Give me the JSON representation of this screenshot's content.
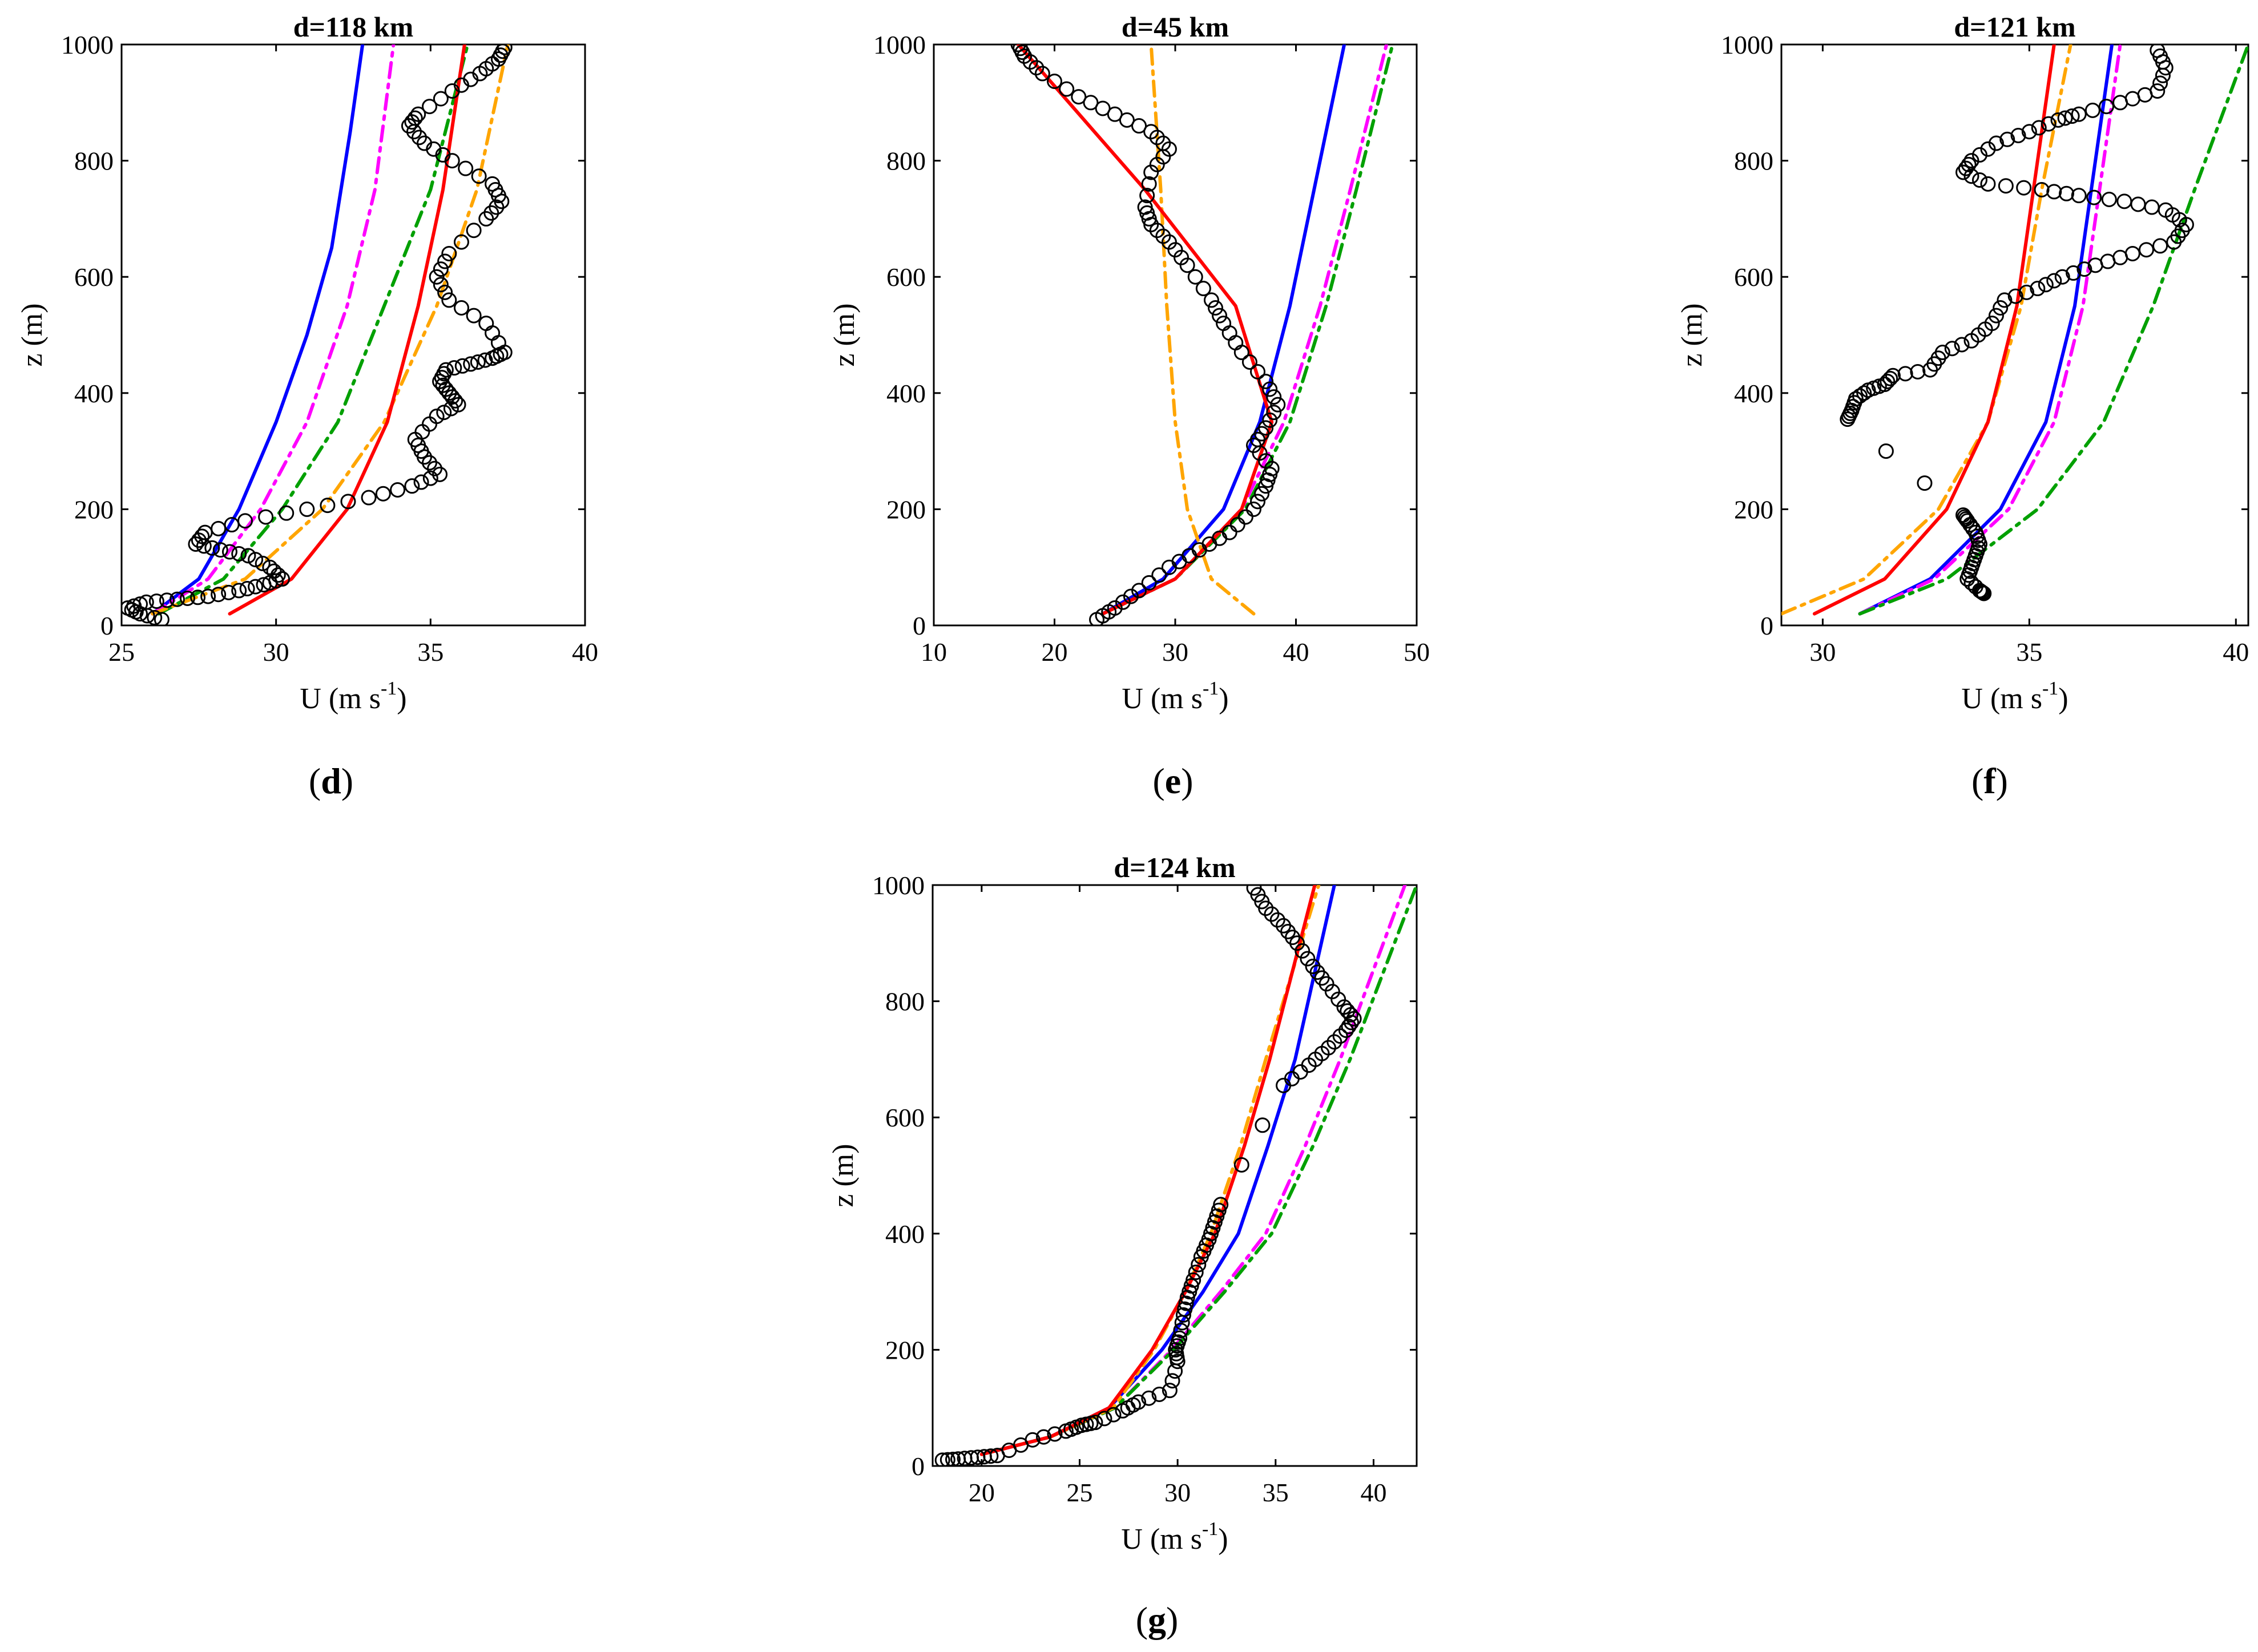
{
  "figure": {
    "colors": {
      "obs": "#000000",
      "blue": "#0000ff",
      "magenta": "#ff00ff",
      "green": "#00a000",
      "orange": "#ffa500",
      "red": "#ff0000"
    }
  },
  "chart_data": [
    {
      "type": "line",
      "title": "d=118 km",
      "caption": {
        "open": "(",
        "letter": "d",
        "close": ")"
      },
      "xlabel": {
        "main": "U (m s",
        "sup": "-1",
        "close": ")"
      },
      "ylabel": "z (m)",
      "xlim": [
        25,
        40
      ],
      "ylim": [
        0,
        1000
      ],
      "xticks": [
        25,
        30,
        35,
        40
      ],
      "yticks": [
        0,
        200,
        400,
        600,
        800,
        1000
      ],
      "series": [
        {
          "name": "blue",
          "style": "solid",
          "x": [
            26.0,
            27.5,
            28.8,
            30.0,
            31.0,
            31.8,
            32.4,
            32.8
          ],
          "y": [
            20,
            80,
            200,
            350,
            500,
            650,
            850,
            1000
          ]
        },
        {
          "name": "magenta",
          "style": "dashdot",
          "x": [
            26.0,
            27.8,
            29.5,
            31.0,
            32.3,
            33.2,
            33.8
          ],
          "y": [
            20,
            80,
            200,
            350,
            550,
            750,
            1000
          ]
        },
        {
          "name": "green",
          "style": "dashdot",
          "x": [
            26.2,
            28.3,
            30.2,
            32.0,
            33.5,
            35.0,
            36.2
          ],
          "y": [
            20,
            80,
            200,
            350,
            550,
            750,
            1000
          ]
        },
        {
          "name": "orange",
          "style": "dashdot",
          "x": [
            26.0,
            29.0,
            31.5,
            33.5,
            35.2,
            36.5,
            37.5
          ],
          "y": [
            20,
            80,
            200,
            350,
            550,
            750,
            1000
          ]
        },
        {
          "name": "red",
          "style": "solid",
          "x": [
            28.5,
            30.5,
            32.3,
            33.6,
            34.6,
            35.4,
            36.1
          ],
          "y": [
            20,
            80,
            200,
            350,
            550,
            750,
            1000
          ]
        },
        {
          "name": "observations",
          "style": "markers",
          "x": [
            26.3,
            25.6,
            25.2,
            25.8,
            26.8,
            27.8,
            28.8,
            29.6,
            30.2,
            29.8,
            29.1,
            28.2,
            27.4,
            27.7,
            29.0,
            31.0,
            33.0,
            34.4,
            35.3,
            34.8,
            34.5,
            35.2,
            35.9,
            35.6,
            35.3,
            35.5,
            36.3,
            37.0,
            37.4,
            36.8,
            35.6,
            35.2,
            35.6,
            36.8,
            37.3,
            37.0,
            35.7,
            34.8,
            34.3,
            34.6,
            35.7,
            36.6,
            37.2,
            37.4
          ],
          "y": [
            10,
            20,
            30,
            40,
            45,
            50,
            60,
            70,
            80,
            100,
            120,
            130,
            140,
            160,
            180,
            200,
            220,
            240,
            260,
            290,
            320,
            360,
            380,
            400,
            420,
            440,
            450,
            460,
            470,
            520,
            560,
            600,
            640,
            700,
            730,
            760,
            800,
            830,
            860,
            880,
            920,
            950,
            975,
            995
          ]
        }
      ]
    },
    {
      "type": "line",
      "title": "d=45 km",
      "caption": {
        "open": "(",
        "letter": "e",
        "close": ")"
      },
      "xlabel": {
        "main": "U (m s",
        "sup": "-1",
        "close": ")"
      },
      "ylabel": "z (m)",
      "xlim": [
        10,
        50
      ],
      "ylim": [
        0,
        1000
      ],
      "xticks": [
        10,
        20,
        30,
        40,
        50
      ],
      "yticks": [
        0,
        200,
        400,
        600,
        800,
        1000
      ],
      "series": [
        {
          "name": "blue",
          "style": "solid",
          "x": [
            24.0,
            29.0,
            34.0,
            37.0,
            39.5,
            41.5,
            44.0
          ],
          "y": [
            20,
            80,
            200,
            350,
            550,
            750,
            1000
          ]
        },
        {
          "name": "magenta",
          "style": "dashdot",
          "x": [
            24.0,
            30.0,
            35.5,
            39.0,
            42.0,
            44.5,
            47.5
          ],
          "y": [
            20,
            80,
            200,
            350,
            550,
            750,
            1000
          ]
        },
        {
          "name": "green",
          "style": "dashdot",
          "x": [
            24.0,
            30.0,
            35.8,
            39.5,
            42.5,
            45.0,
            48.0
          ],
          "y": [
            20,
            80,
            200,
            350,
            550,
            750,
            1000
          ]
        },
        {
          "name": "orange",
          "style": "dashdot",
          "x": [
            36.5,
            33.0,
            31.0,
            30.0,
            29.3,
            28.8,
            28.0
          ],
          "y": [
            20,
            80,
            200,
            350,
            550,
            750,
            1000
          ]
        },
        {
          "name": "red",
          "style": "solid",
          "x": [
            24.0,
            30.0,
            35.5,
            38.0,
            35.0,
            27.5,
            17.0
          ],
          "y": [
            20,
            80,
            200,
            350,
            550,
            750,
            1000
          ]
        },
        {
          "name": "observations",
          "style": "markers",
          "x": [
            23.5,
            25.0,
            27.0,
            29.5,
            32.0,
            34.5,
            36.5,
            37.5,
            38.0,
            36.5,
            37.5,
            38.5,
            37.5,
            35.5,
            34.0,
            33.0,
            31.0,
            29.5,
            28.0,
            27.5,
            28.0,
            29.5,
            28.0,
            25.0,
            22.0,
            19.0,
            17.5,
            17.0
          ],
          "y": [
            10,
            30,
            60,
            100,
            130,
            160,
            200,
            240,
            270,
            310,
            340,
            380,
            420,
            470,
            520,
            560,
            620,
            660,
            690,
            720,
            780,
            820,
            850,
            880,
            910,
            950,
            980,
            1000
          ]
        }
      ]
    },
    {
      "type": "line",
      "title": "d=121 km",
      "caption": {
        "open": "(",
        "letter": "f",
        "close": ")"
      },
      "xlabel": {
        "main": "U (m s",
        "sup": "-1",
        "close": ")"
      },
      "ylabel": "z (m)",
      "xlim": [
        29,
        40.3
      ],
      "ylim": [
        0,
        1000
      ],
      "xticks": [
        30,
        35,
        40
      ],
      "yticks": [
        0,
        200,
        400,
        600,
        800,
        1000
      ],
      "series": [
        {
          "name": "blue",
          "style": "solid",
          "x": [
            30.9,
            32.6,
            34.3,
            35.4,
            36.1,
            36.5,
            37.0
          ],
          "y": [
            20,
            80,
            200,
            350,
            550,
            750,
            1000
          ]
        },
        {
          "name": "magenta",
          "style": "dashdot",
          "x": [
            30.9,
            32.7,
            34.5,
            35.6,
            36.3,
            36.7,
            37.2
          ],
          "y": [
            20,
            80,
            200,
            350,
            550,
            750,
            1000
          ]
        },
        {
          "name": "green",
          "style": "dashdot",
          "x": [
            30.9,
            33.0,
            35.2,
            36.8,
            38.0,
            39.0,
            40.3
          ],
          "y": [
            20,
            80,
            200,
            350,
            550,
            750,
            1000
          ]
        },
        {
          "name": "orange",
          "style": "dashdot",
          "x": [
            29.0,
            31.0,
            32.8,
            34.0,
            34.8,
            35.3,
            36.0
          ],
          "y": [
            20,
            80,
            200,
            350,
            550,
            750,
            1000
          ]
        },
        {
          "name": "red",
          "style": "solid",
          "x": [
            29.8,
            31.5,
            33.0,
            34.0,
            34.7,
            35.1,
            35.6
          ],
          "y": [
            20,
            80,
            200,
            350,
            550,
            750,
            1000
          ]
        },
        {
          "name": "observations",
          "style": "markers",
          "x": [
            33.9,
            33.8,
            33.5,
            33.6,
            33.7,
            33.8,
            33.7,
            33.5,
            33.4,
            30.6,
            30.7,
            30.8,
            31.1,
            31.5,
            31.7,
            32.6,
            32.9,
            33.6,
            34.1,
            34.4,
            35.2,
            35.8,
            36.6,
            37.5,
            38.5,
            38.8,
            38.3,
            37.3,
            36.2,
            35.3,
            34.0,
            33.4,
            33.6,
            34.2,
            35.0,
            35.7,
            36.2,
            37.2,
            38.1,
            38.3,
            38.1
          ],
          "y": [
            55,
            60,
            80,
            100,
            120,
            140,
            160,
            180,
            190,
            355,
            370,
            390,
            405,
            415,
            430,
            440,
            470,
            490,
            520,
            560,
            580,
            600,
            620,
            640,
            660,
            690,
            715,
            730,
            740,
            750,
            760,
            780,
            800,
            830,
            850,
            870,
            880,
            900,
            920,
            960,
            990
          ]
        }
      ]
    },
    {
      "type": "line",
      "title": "d=124 km",
      "caption": {
        "open": "(",
        "letter": "g",
        "close": ")"
      },
      "xlabel": {
        "main": "U (m s",
        "sup": "-1",
        "close": ")"
      },
      "ylabel": "z (m)",
      "xlim": [
        17.5,
        42.2
      ],
      "ylim": [
        0,
        1000
      ],
      "xticks": [
        20,
        25,
        30,
        35,
        40
      ],
      "yticks": [
        0,
        200,
        400,
        600,
        800,
        1000
      ],
      "series": [
        {
          "name": "blue",
          "style": "solid",
          "x": [
            20.0,
            23.5,
            26.5,
            29.2,
            31.3,
            33.1,
            34.6,
            36.0,
            38.0
          ],
          "y": [
            20,
            50,
            100,
            200,
            300,
            400,
            550,
            700,
            1000
          ]
        },
        {
          "name": "magenta",
          "style": "dashdot",
          "x": [
            20.0,
            23.5,
            26.8,
            29.7,
            32.2,
            34.5,
            36.5,
            38.3,
            41.6
          ],
          "y": [
            20,
            50,
            100,
            200,
            300,
            400,
            550,
            700,
            1000
          ]
        },
        {
          "name": "green",
          "style": "dashdot",
          "x": [
            20.0,
            23.5,
            26.8,
            29.8,
            32.4,
            34.8,
            36.9,
            38.8,
            42.2
          ],
          "y": [
            20,
            50,
            100,
            200,
            300,
            400,
            550,
            700,
            1000
          ]
        },
        {
          "name": "orange",
          "style": "dashdot",
          "x": [
            20.0,
            23.5,
            26.7,
            28.8,
            30.4,
            31.7,
            33.2,
            34.5,
            37.2
          ],
          "y": [
            20,
            50,
            100,
            200,
            300,
            400,
            550,
            700,
            1000
          ]
        },
        {
          "name": "red",
          "style": "solid",
          "x": [
            20.0,
            23.5,
            26.5,
            28.7,
            30.4,
            31.9,
            33.4,
            34.7,
            37.0
          ],
          "y": [
            20,
            50,
            100,
            200,
            300,
            400,
            550,
            700,
            1000
          ]
        },
        {
          "name": "observations",
          "style": "markers",
          "x": [
            18.0,
            18.8,
            19.8,
            20.8,
            22.6,
            24.3,
            25.1,
            25.8,
            27.2,
            28.0,
            29.6,
            30.0,
            29.9,
            30.1,
            30.3,
            30.5,
            30.8,
            31.2,
            31.6,
            31.9,
            32.2,
            35.4,
            36.7,
            37.7,
            38.6,
            39.0,
            38.5,
            37.6,
            36.9,
            36.1,
            35.4,
            34.5,
            33.9
          ],
          "y": [
            10,
            12,
            15,
            18,
            45,
            60,
            70,
            75,
            95,
            110,
            130,
            180,
            200,
            220,
            260,
            290,
            320,
            360,
            390,
            420,
            450,
            655,
            690,
            720,
            750,
            770,
            790,
            830,
            860,
            900,
            930,
            960,
            995
          ]
        }
      ]
    }
  ]
}
